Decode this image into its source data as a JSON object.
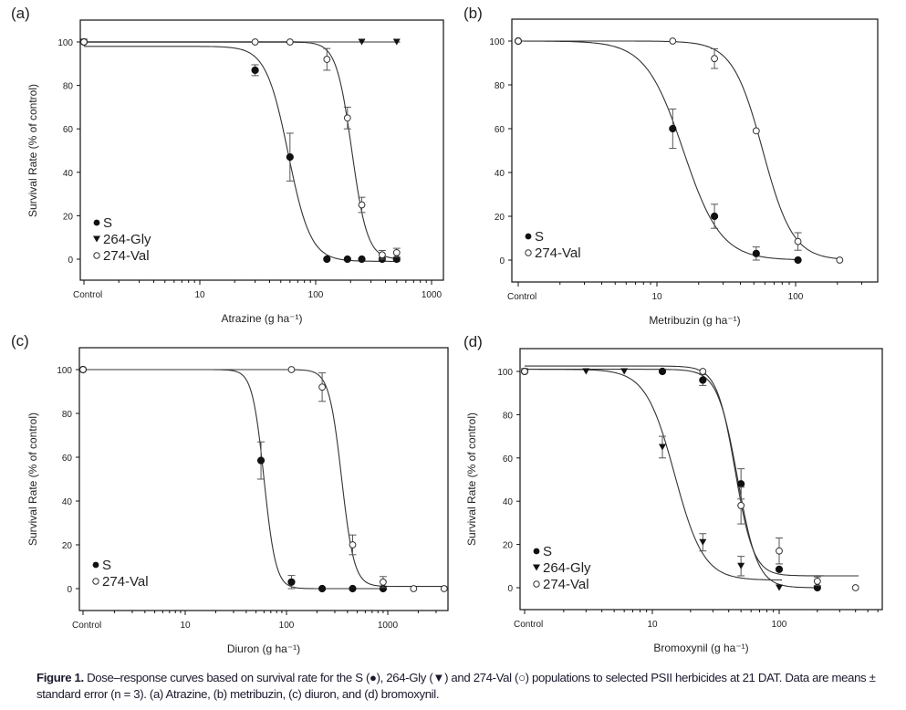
{
  "caption": {
    "label": "Figure 1.",
    "text": " Dose–response curves based on survival rate for the S (●), 264-Gly (▼) and 274-Val (○) populations to selected PSII herbicides at 21 DAT. Data are means ± standard error (n = 3). (a) Atrazine, (b) metribuzin, (c) diuron, and (d) bromoxynil."
  },
  "chart_data": [
    {
      "type": "scatter",
      "panel": "(a)",
      "xlabel": "Atrazine (g ha⁻¹)",
      "ylabel": "Survival Rate (% of control)",
      "xscale": "log",
      "control_label": "Control",
      "xticks": [
        10,
        100,
        1000
      ],
      "xlim_decades": [
        0.0,
        3.15
      ],
      "control_pos": 0.0,
      "yticks": [
        0,
        20,
        40,
        60,
        80,
        100
      ],
      "ylim": [
        -10,
        110
      ],
      "legend": "bottom-left",
      "series": [
        {
          "name": "S",
          "marker": "filled-circle",
          "x": [
            "control",
            30,
            60,
            125,
            188,
            250,
            375,
            500
          ],
          "y": [
            100,
            87,
            47,
            0,
            0,
            0,
            0,
            0
          ],
          "err": [
            0,
            2.5,
            11,
            0,
            0,
            0,
            0,
            0
          ],
          "fit": {
            "top": 98,
            "bottom": -1,
            "ed50": 58,
            "slope": 4.5
          }
        },
        {
          "name": "264-Gly",
          "marker": "filled-triangle-down",
          "x": [
            "control",
            250,
            500
          ],
          "y": [
            100,
            100,
            100
          ],
          "err": [
            0,
            0,
            0
          ],
          "fit": {
            "flat": 100,
            "color": "#999"
          }
        },
        {
          "name": "274-Val",
          "marker": "open-circle",
          "x": [
            "control",
            30,
            60,
            125,
            188,
            250,
            375,
            500
          ],
          "y": [
            100,
            100,
            100,
            92,
            65,
            25,
            2,
            3
          ],
          "err": [
            0,
            0,
            0,
            5,
            5,
            3.5,
            2,
            2
          ],
          "fit": {
            "top": 100,
            "bottom": 0,
            "ed50": 205,
            "slope": 6.5
          }
        }
      ]
    },
    {
      "type": "scatter",
      "panel": "(b)",
      "xlabel": "Metribuzin (g ha⁻¹)",
      "ylabel": "",
      "xscale": "log",
      "control_label": "Control",
      "xticks": [
        10,
        100
      ],
      "xlim_decades": [
        0.0,
        2.6
      ],
      "control_pos": 0.0,
      "yticks": [
        0,
        20,
        40,
        60,
        80,
        100
      ],
      "ylim": [
        -10,
        110
      ],
      "legend": "bottom-left",
      "series": [
        {
          "name": "S",
          "marker": "filled-circle",
          "x": [
            "control",
            13,
            26,
            52,
            104
          ],
          "y": [
            100,
            60,
            20,
            3,
            0
          ],
          "err": [
            0,
            9,
            5.5,
            3,
            0
          ],
          "fit": {
            "top": 100,
            "bottom": 0,
            "ed50": 15.5,
            "slope": 3.2
          }
        },
        {
          "name": "274-Val",
          "marker": "open-circle",
          "x": [
            "control",
            13,
            26,
            52,
            104,
            208
          ],
          "y": [
            100,
            100,
            92,
            59,
            8.5,
            0
          ],
          "err": [
            0,
            0,
            4.5,
            0,
            4,
            0
          ],
          "fit": {
            "top": 100,
            "bottom": 0,
            "ed50": 58,
            "slope": 4.0
          }
        }
      ]
    },
    {
      "type": "scatter",
      "panel": "(c)",
      "xlabel": "Diuron (g ha⁻¹)",
      "ylabel": "Survival Rate (% of control)",
      "xscale": "log",
      "control_label": "Control",
      "xticks": [
        10,
        100,
        1000
      ],
      "xlim_decades": [
        0.0,
        3.6
      ],
      "control_pos": 0.0,
      "yticks": [
        0,
        20,
        40,
        60,
        80,
        100
      ],
      "ylim": [
        -10,
        110
      ],
      "legend": "bottom-left",
      "series": [
        {
          "name": "S",
          "marker": "filled-circle",
          "x": [
            "control",
            56,
            112,
            225,
            450,
            900
          ],
          "y": [
            100,
            58.5,
            3,
            0,
            0,
            0
          ],
          "err": [
            0,
            8.5,
            3,
            0,
            0,
            0
          ],
          "fit": {
            "top": 100,
            "bottom": 0,
            "ed50": 60,
            "slope": 7.5
          }
        },
        {
          "name": "274-Val",
          "marker": "open-circle",
          "x": [
            "control",
            112,
            225,
            450,
            900,
            1800,
            3600
          ],
          "y": [
            100,
            100,
            92,
            20,
            3,
            0,
            0
          ],
          "err": [
            0,
            0,
            6.5,
            4.5,
            2.5,
            0,
            0
          ],
          "fit": {
            "top": 100,
            "bottom": 1,
            "ed50": 350,
            "slope": 7.0
          }
        }
      ]
    },
    {
      "type": "scatter",
      "panel": "(d)",
      "xlabel": "Bromoxynil (g ha⁻¹)",
      "ylabel": "Survival Rate (% of control)",
      "xscale": "log",
      "control_label": "Control",
      "xticks": [
        10,
        100
      ],
      "xlim_decades": [
        0.0,
        2.85
      ],
      "control_pos": 0.0,
      "yticks": [
        0,
        20,
        40,
        60,
        80,
        100
      ],
      "ylim": [
        -10,
        110
      ],
      "legend": "bottom-left",
      "series": [
        {
          "name": "S",
          "marker": "filled-circle",
          "x": [
            "control",
            12,
            25,
            50,
            100,
            200
          ],
          "y": [
            100,
            100,
            96,
            48,
            8.5,
            0
          ],
          "err": [
            0,
            0,
            2.5,
            7,
            0,
            0
          ],
          "fit": {
            "top": 101,
            "bottom": 0,
            "ed50": 47,
            "slope": 5.5
          }
        },
        {
          "name": "264-Gly",
          "marker": "filled-triangle-down",
          "x": [
            "control",
            3,
            6,
            12,
            25,
            50,
            100
          ],
          "y": [
            100,
            100,
            100,
            65,
            21,
            10,
            0
          ],
          "err": [
            0,
            0,
            0,
            5,
            4,
            4.5,
            0
          ],
          "fit": {
            "top": 101,
            "bottom": 3.5,
            "ed50": 15,
            "slope": 3.8
          }
        },
        {
          "name": "274-Val",
          "marker": "open-circle",
          "x": [
            "control",
            25,
            50,
            100,
            200,
            400
          ],
          "y": [
            100,
            100,
            38,
            17,
            3,
            0
          ],
          "err": [
            0,
            0,
            8.5,
            6,
            2,
            0
          ],
          "fit": {
            "top": 102.5,
            "bottom": 5.5,
            "ed50": 45,
            "slope": 6.0
          }
        }
      ]
    }
  ]
}
